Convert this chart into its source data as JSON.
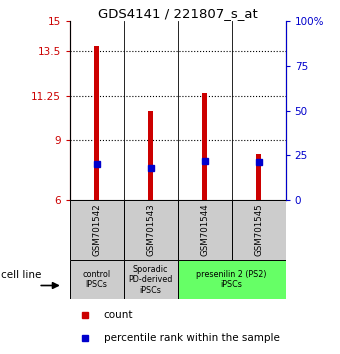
{
  "title": "GDS4141 / 221807_s_at",
  "samples": [
    "GSM701542",
    "GSM701543",
    "GSM701544",
    "GSM701545"
  ],
  "red_bar_tops": [
    13.75,
    10.5,
    11.4,
    8.3
  ],
  "red_bar_bottom": 6.0,
  "blue_pct_values": [
    20,
    18,
    22,
    21
  ],
  "ylim_left": [
    6,
    15
  ],
  "ylim_right": [
    0,
    100
  ],
  "yticks_left": [
    6,
    9,
    11.25,
    13.5,
    15
  ],
  "ytick_labels_left": [
    "6",
    "9",
    "11.25",
    "13.5",
    "15"
  ],
  "yticks_right": [
    0,
    25,
    50,
    75,
    100
  ],
  "ytick_labels_right": [
    "0",
    "25",
    "50",
    "75",
    "100%"
  ],
  "hlines": [
    9,
    11.25,
    13.5
  ],
  "left_color": "#cc0000",
  "right_color": "#0000cc",
  "blue_square_color": "#0000cc",
  "bar_color": "#cc0000",
  "group_info": [
    [
      0,
      0,
      "#cccccc",
      "control\nIPSCs"
    ],
    [
      1,
      1,
      "#cccccc",
      "Sporadic\nPD-derived\niPSCs"
    ],
    [
      2,
      3,
      "#66ff66",
      "presenilin 2 (PS2)\niPSCs"
    ]
  ],
  "cell_line_label": "cell line",
  "legend_count": "count",
  "legend_pct": "percentile rank within the sample",
  "bg_color": "#ffffff"
}
